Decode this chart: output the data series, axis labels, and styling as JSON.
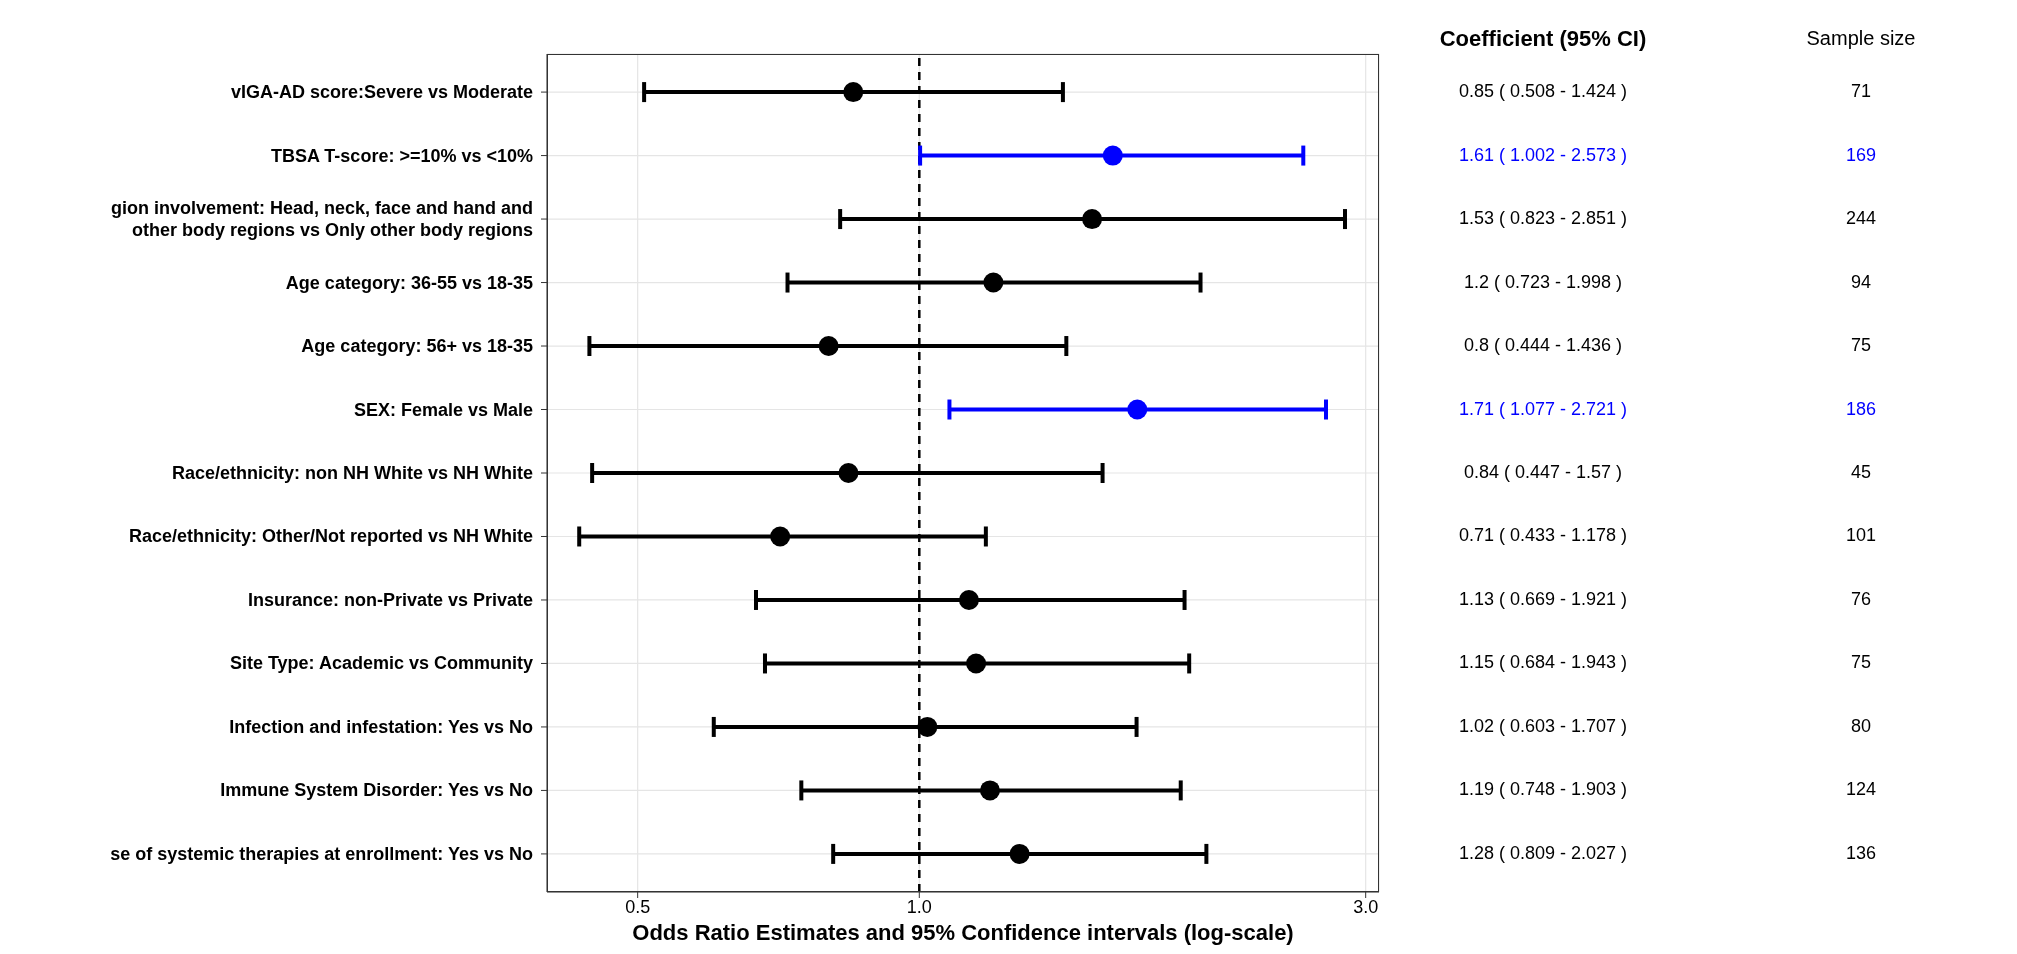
{
  "chart_data": {
    "type": "scatter",
    "orientation": "horizontal",
    "xlabel": "Odds Ratio Estimates and 95% Confidence intervals (log-scale)",
    "categories": [
      "vIGA-AD score:Severe vs Moderate",
      "TBSA T-score: >=10% vs <10%",
      "gion involvement: Head, neck, face and hand and\nother body regions vs Only other body regions",
      "Age category: 36-55 vs 18-35",
      "Age category: 56+ vs 18-35",
      "SEX: Female vs Male",
      "Race/ethnicity: non NH White vs NH White",
      "Race/ethnicity: Other/Not reported vs NH White",
      "Insurance: non-Private  vs Private",
      "Site Type:  Academic vs Community",
      "Infection and infestation: Yes vs No",
      "Immune System Disorder: Yes vs No",
      "se of systemic therapies at enrollment: Yes vs No"
    ],
    "values": [
      0.85,
      1.61,
      1.53,
      1.2,
      0.8,
      1.71,
      0.84,
      0.71,
      1.13,
      1.15,
      1.02,
      1.19,
      1.28
    ],
    "errors": [
      [
        0.508,
        1.424
      ],
      [
        1.002,
        2.573
      ],
      [
        0.823,
        2.851
      ],
      [
        0.723,
        1.998
      ],
      [
        0.444,
        1.436
      ],
      [
        1.077,
        2.721
      ],
      [
        0.447,
        1.57
      ],
      [
        0.433,
        1.178
      ],
      [
        0.669,
        1.921
      ],
      [
        0.684,
        1.943
      ],
      [
        0.603,
        1.707
      ],
      [
        0.748,
        1.903
      ],
      [
        0.809,
        2.027
      ]
    ],
    "colors": [
      "#000000",
      "#0000ff",
      "#000000",
      "#000000",
      "#000000",
      "#0000ff",
      "#000000",
      "#000000",
      "#000000",
      "#000000",
      "#000000",
      "#000000",
      "#000000"
    ],
    "value_labels": [
      "0.85 ( 0.508 - 1.424 )",
      "1.61 ( 1.002 - 2.573 )",
      "1.53 ( 0.823 - 2.851 )",
      "1.2 ( 0.723 - 1.998 )",
      "0.8 ( 0.444 - 1.436 )",
      "1.71 ( 1.077 - 2.721 )",
      "0.84 ( 0.447 - 1.57 )",
      "0.71 ( 0.433 - 1.178 )",
      "1.13 ( 0.669 - 1.921 )",
      "1.15 ( 0.684 - 1.943 )",
      "1.02 ( 0.603 - 1.707 )",
      "1.19 ( 0.748 - 1.903 )",
      "1.28 ( 0.809 - 2.027 )"
    ],
    "log": "x",
    "xlim": [
      0.4,
      3.1
    ],
    "xticks": [
      {
        "value": 0.5,
        "label": "0.5"
      },
      {
        "value": 1,
        "label": "1.0"
      },
      {
        "value": 3,
        "label": "3.0"
      }
    ],
    "grid": true,
    "marker": "circle",
    "ref_lines": [
      {
        "axis": "x",
        "value": 1,
        "label": null,
        "color": "#000000",
        "line_style": "dashed"
      }
    ],
    "annotations": [
      "Coefficient (95% CI)",
      "Sample size",
      "71",
      "169",
      "244",
      "94",
      "75",
      "186",
      "45",
      "101",
      "76",
      "75",
      "80",
      "124",
      "136"
    ]
  }
}
